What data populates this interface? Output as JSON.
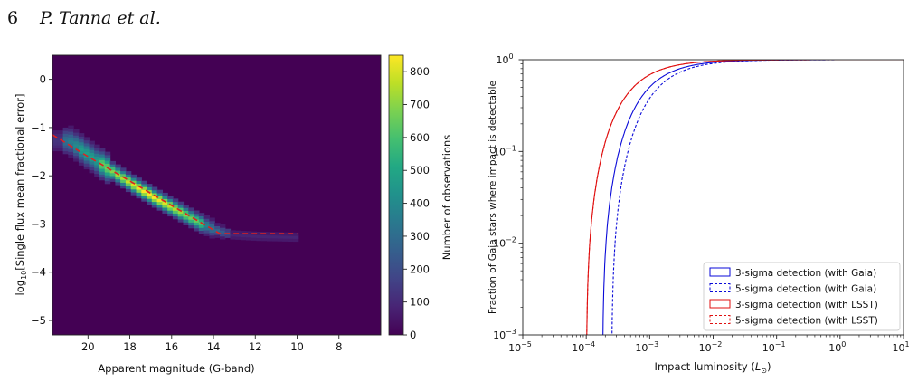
{
  "page_header": {
    "page_number": "6",
    "authors": "P. Tanna et al."
  },
  "colors": {
    "gaia": "#0a0ad8",
    "lsst": "#e01010",
    "fit_line": "#e02020",
    "viridis_low": "#440154",
    "viridis_high": "#fde725"
  },
  "chart_data": [
    {
      "type": "heatmap",
      "xlabel": "Apparent magnitude (G-band)",
      "ylabel_parts": {
        "prefix": "log",
        "sub": "10",
        "rest": "[Single flux mean fractional error]"
      },
      "xlim": [
        21.7,
        6.0
      ],
      "ylim": [
        -5.3,
        0.5
      ],
      "x_ticks": [
        20,
        18,
        16,
        14,
        12,
        10,
        8
      ],
      "x_tick_labels": [
        "20",
        "18",
        "16",
        "14",
        "12",
        "10",
        "8"
      ],
      "y_ticks": [
        0,
        -1,
        -2,
        -3,
        -4,
        -5
      ],
      "y_tick_labels": [
        "0",
        "−1",
        "−2",
        "−3",
        "−4",
        "−5"
      ],
      "density_ridge": [
        [
          21,
          -1.3
        ],
        [
          20,
          -1.62
        ],
        [
          19,
          -1.92
        ],
        [
          18,
          -2.2
        ],
        [
          17,
          -2.46
        ],
        [
          16,
          -2.7
        ],
        [
          15,
          -2.95
        ],
        [
          14,
          -3.15
        ],
        [
          13.2,
          -3.25
        ],
        [
          12,
          -3.28
        ],
        [
          10,
          -3.3
        ]
      ],
      "fit_line": [
        [
          21.7,
          -1.15
        ],
        [
          20.0,
          -1.6
        ],
        [
          13.7,
          -3.2
        ],
        [
          10.0,
          -3.2
        ]
      ],
      "colorbar": {
        "label": "Number of observations",
        "min": 0,
        "max": 850,
        "ticks": [
          0,
          100,
          200,
          300,
          400,
          500,
          600,
          700,
          800
        ],
        "tick_labels": [
          "0",
          "100",
          "200",
          "300",
          "400",
          "500",
          "600",
          "700",
          "800"
        ]
      }
    },
    {
      "type": "line",
      "xlabel_text": "Impact luminosity (",
      "xlabel_unit": "L",
      "xlabel_close": ")",
      "ylabel": "Fraction of Gaia stars where impact is detectable",
      "x_scale": "log",
      "y_scale": "log",
      "xlim": [
        1e-05,
        10
      ],
      "ylim": [
        0.001,
        1
      ],
      "x_ticks": [
        {
          "base": "10",
          "exp": "−5",
          "value": 1e-05
        },
        {
          "base": "10",
          "exp": "−4",
          "value": 0.0001
        },
        {
          "base": "10",
          "exp": "−3",
          "value": 0.001
        },
        {
          "base": "10",
          "exp": "−2",
          "value": 0.01
        },
        {
          "base": "10",
          "exp": "−1",
          "value": 0.1
        },
        {
          "base": "10",
          "exp": "0",
          "value": 1
        },
        {
          "base": "10",
          "exp": "1",
          "value": 10
        }
      ],
      "y_ticks": [
        {
          "base": "10",
          "exp": "0",
          "value": 1
        },
        {
          "base": "10",
          "exp": "−1",
          "value": 0.1
        },
        {
          "base": "10",
          "exp": "−2",
          "value": 0.01
        },
        {
          "base": "10",
          "exp": "−3",
          "value": 0.001
        }
      ],
      "legend_position": "lower-right",
      "series": [
        {
          "name": "3-sigma detection (with Gaia)",
          "style": "solid",
          "color": "#0a0ad8",
          "onset": 0.00018
        },
        {
          "name": "5-sigma detection (with Gaia)",
          "style": "dashed",
          "color": "#0a0ad8",
          "onset": 0.00025
        },
        {
          "name": "3-sigma detection (with LSST)",
          "style": "solid",
          "color": "#e01010",
          "onset": 0.0001
        },
        {
          "name": "5-sigma detection (with LSST)",
          "style": "dashed",
          "color": "#e01010",
          "onset": 0.0001
        }
      ]
    }
  ]
}
